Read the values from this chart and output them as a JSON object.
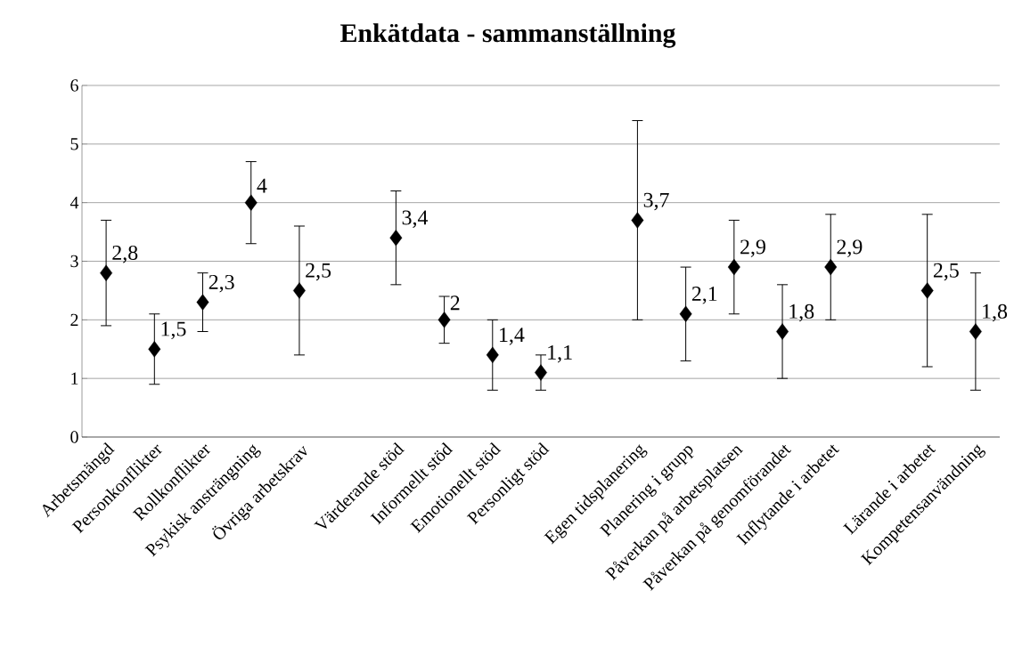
{
  "chart_data": {
    "type": "scatter",
    "title": "Enkätdata - sammanställning",
    "categories": [
      "Arbetsmängd",
      "Personkonflikter",
      "Rollkonflikter",
      "Psykisk ansträngning",
      "Övriga arbetskrav",
      null,
      "Värderande stöd",
      "Informellt stöd",
      "Emotionellt stöd",
      "Personligt stöd",
      null,
      "Egen tidsplanering",
      "Planering i grupp",
      "Påverkan på arbetsplatsen",
      "Påverkan på genomförandet",
      "Inflytande i arbetet",
      null,
      "Lärande i arbetet",
      "Kompetensanvändning"
    ],
    "values": [
      2.8,
      1.5,
      2.3,
      4,
      2.5,
      null,
      3.4,
      2,
      1.4,
      1.1,
      null,
      3.7,
      2.1,
      2.9,
      1.8,
      2.9,
      null,
      2.5,
      1.8
    ],
    "errors": [
      0.9,
      0.6,
      0.5,
      0.7,
      1.1,
      null,
      0.8,
      0.4,
      0.6,
      0.3,
      null,
      1.7,
      0.8,
      0.8,
      0.8,
      0.9,
      null,
      1.3,
      1.0
    ],
    "value_labels": [
      "2,8",
      "1,5",
      "2,3",
      "4",
      "2,5",
      null,
      "3,4",
      "2",
      "1,4",
      "1,1",
      null,
      "3,7",
      "2,1",
      "2,9",
      "1,8",
      "2,9",
      null,
      "2,5",
      "1,8"
    ],
    "color": "#000000",
    "marker": "diamond",
    "ylim": [
      0,
      6
    ],
    "yticks": [
      0,
      1,
      2,
      3,
      4,
      5,
      6
    ],
    "grid": "y"
  }
}
